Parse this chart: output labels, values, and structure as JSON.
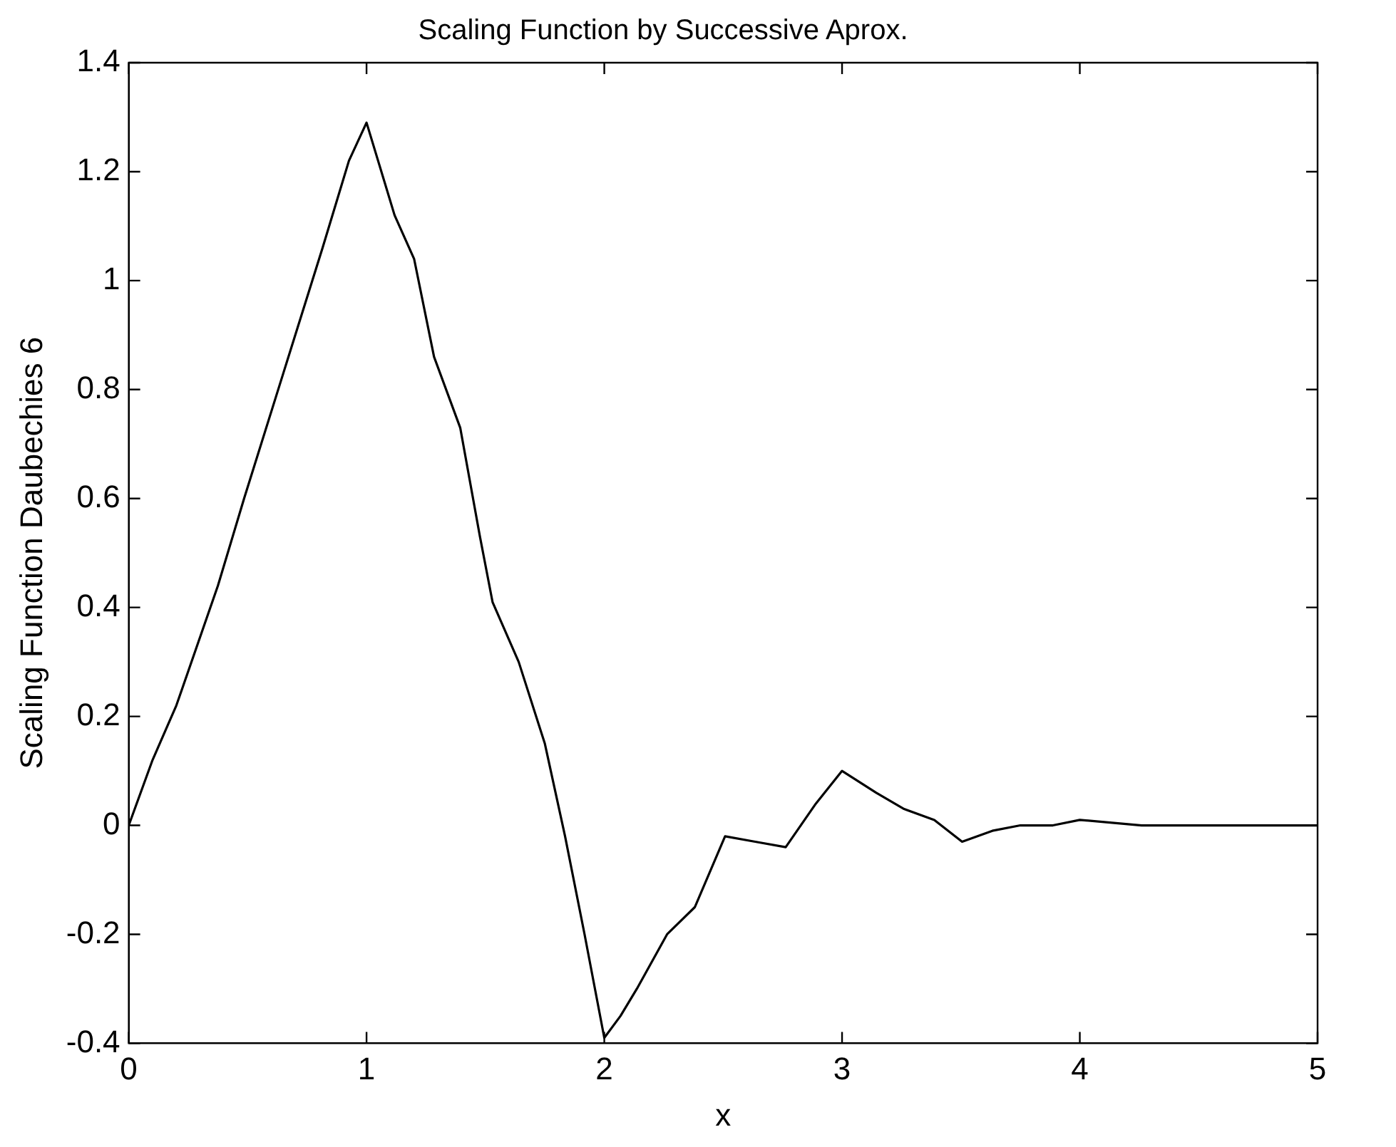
{
  "chart_data": {
    "type": "line",
    "title": "Scaling Function by Successive Aprox.",
    "xlabel": "x",
    "ylabel": "Scaling Function Daubechies 6",
    "x": [
      0,
      0.1,
      0.2,
      0.375,
      0.485,
      0.65,
      0.815,
      0.926,
      1,
      1.118,
      1.2,
      1.284,
      1.394,
      1.477,
      1.53,
      1.64,
      1.75,
      1.835,
      1.917,
      2,
      2.068,
      2.137,
      2.264,
      2.381,
      2.508,
      2.635,
      2.763,
      2.89,
      3,
      3.143,
      3.261,
      3.388,
      3.505,
      3.632,
      3.75,
      3.887,
      4,
      4.26,
      4.75,
      5
    ],
    "series": [
      {
        "color": "#000000",
        "values": [
          0,
          0.12,
          0.22,
          0.44,
          0.6,
          0.83,
          1.06,
          1.22,
          1.29,
          1.12,
          1.04,
          0.86,
          0.73,
          0.53,
          0.41,
          0.3,
          0.15,
          -0.02,
          -0.2,
          -0.39,
          -0.35,
          -0.3,
          -0.2,
          -0.15,
          -0.02,
          -0.03,
          -0.04,
          0.04,
          0.1,
          0.06,
          0.03,
          0.01,
          -0.03,
          -0.01,
          0,
          0,
          0.01,
          0,
          0,
          0
        ]
      }
    ],
    "xlim": [
      0,
      5
    ],
    "xticks": [
      0,
      1,
      2,
      3,
      4,
      5
    ],
    "ylim": [
      -0.4,
      1.4
    ],
    "yticks": [
      -0.4,
      -0.2,
      0,
      0.2,
      0.4,
      0.6,
      0.8,
      1,
      1.2,
      1.4
    ],
    "legend": false,
    "marker": "none",
    "line_style": "solid"
  }
}
